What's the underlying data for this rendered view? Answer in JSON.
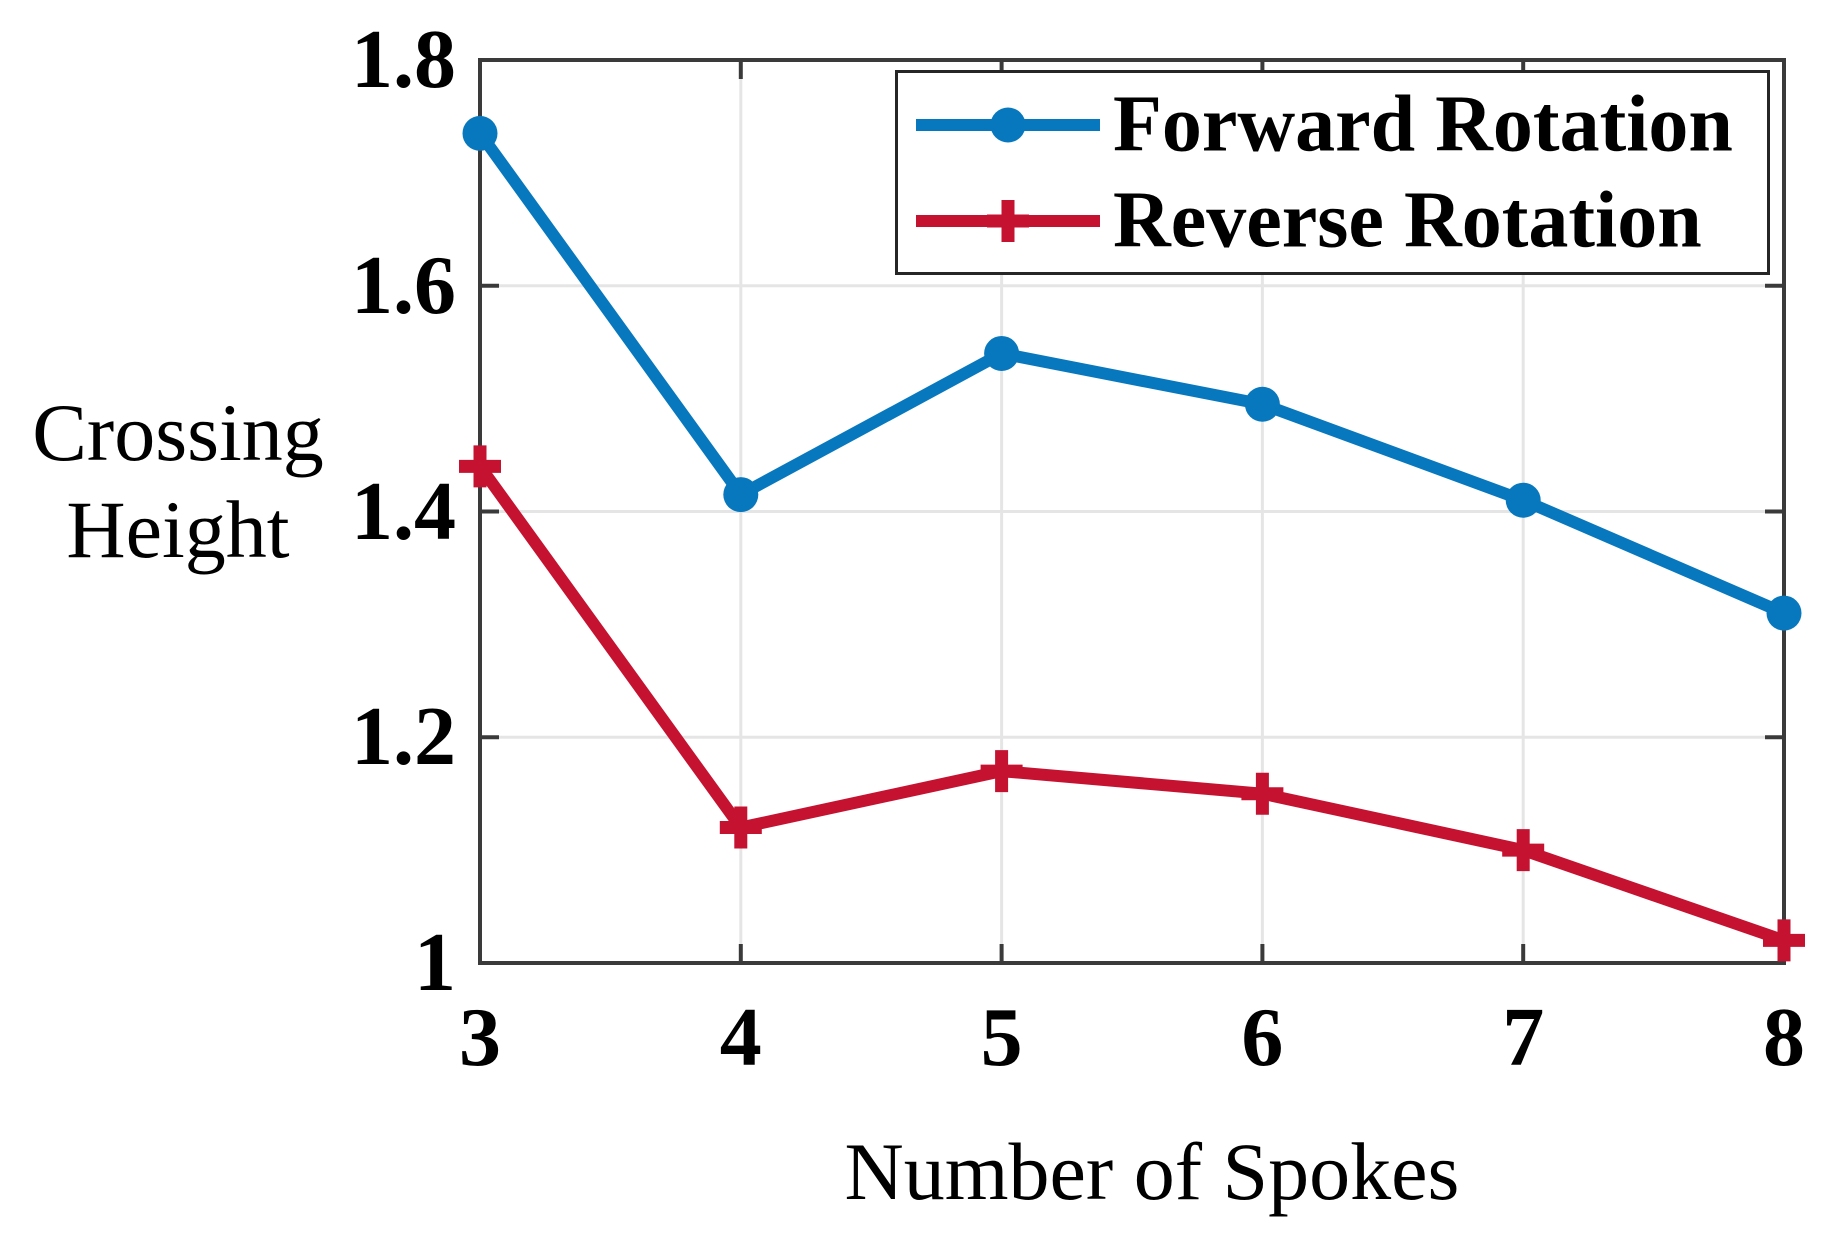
{
  "chart_data": {
    "type": "line",
    "x": [
      3,
      4,
      5,
      6,
      7,
      8
    ],
    "series": [
      {
        "name": "Forward Rotation",
        "color": "#0878BE",
        "marker": "circle",
        "values": [
          1.735,
          1.415,
          1.54,
          1.495,
          1.41,
          1.31
        ]
      },
      {
        "name": "Reverse Rotation",
        "color": "#C51230",
        "marker": "plus",
        "values": [
          1.44,
          1.12,
          1.17,
          1.15,
          1.1,
          1.02
        ]
      }
    ],
    "xlabel": "Number of Spokes",
    "ylabel": "Crossing Height",
    "ylabel_lines": [
      "Crossing",
      "Height"
    ],
    "xlim": [
      3,
      8
    ],
    "ylim": [
      1,
      1.8
    ],
    "xticks": [
      3,
      4,
      5,
      6,
      7,
      8
    ],
    "xtick_labels": [
      "3",
      "4",
      "5",
      "6",
      "7",
      "8"
    ],
    "yticks": [
      1,
      1.2,
      1.4,
      1.6,
      1.8
    ],
    "ytick_labels": [
      "1",
      "1.2",
      "1.4",
      "1.6",
      "1.8"
    ],
    "grid": true,
    "legend_position": "top-right"
  },
  "colors": {
    "axis": "#3A3A3A",
    "grid": "#E5E5E5",
    "legend_border": "#262626",
    "text": "#000000"
  }
}
